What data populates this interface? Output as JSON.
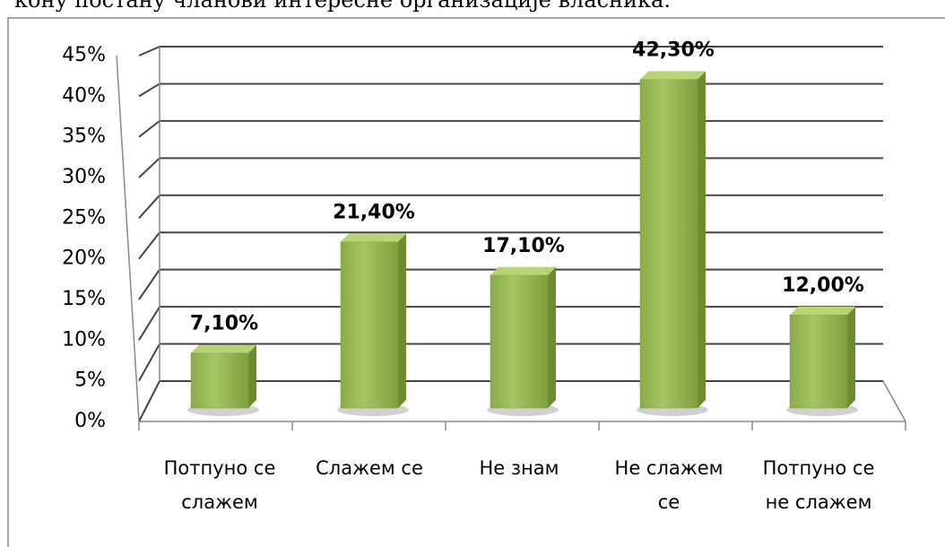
{
  "chart_data": {
    "type": "bar3d",
    "annotations": [
      "кону постану чланови интересне организације власника."
    ],
    "categories": [
      "Потпуно се слажем",
      "Слажем се",
      "Не знам",
      "Не слажем се",
      "Потпуно се не слажем"
    ],
    "values": [
      7.1,
      21.4,
      17.1,
      42.3,
      12.0
    ],
    "value_labels": [
      "7,10%",
      "21,40%",
      "17,10%",
      "42,30%",
      "12,00%"
    ],
    "color": "#9bbb59",
    "ylim": [
      0,
      45
    ],
    "yticks": [
      {
        "value": 0,
        "label": "0%"
      },
      {
        "value": 5,
        "label": "5%"
      },
      {
        "value": 10,
        "label": "10%"
      },
      {
        "value": 15,
        "label": "15%"
      },
      {
        "value": 20,
        "label": "20%"
      },
      {
        "value": 25,
        "label": "25%"
      },
      {
        "value": 30,
        "label": "30%"
      },
      {
        "value": 35,
        "label": "35%"
      },
      {
        "value": 40,
        "label": "40%"
      },
      {
        "value": 45,
        "label": "45%"
      }
    ],
    "grid": true
  }
}
